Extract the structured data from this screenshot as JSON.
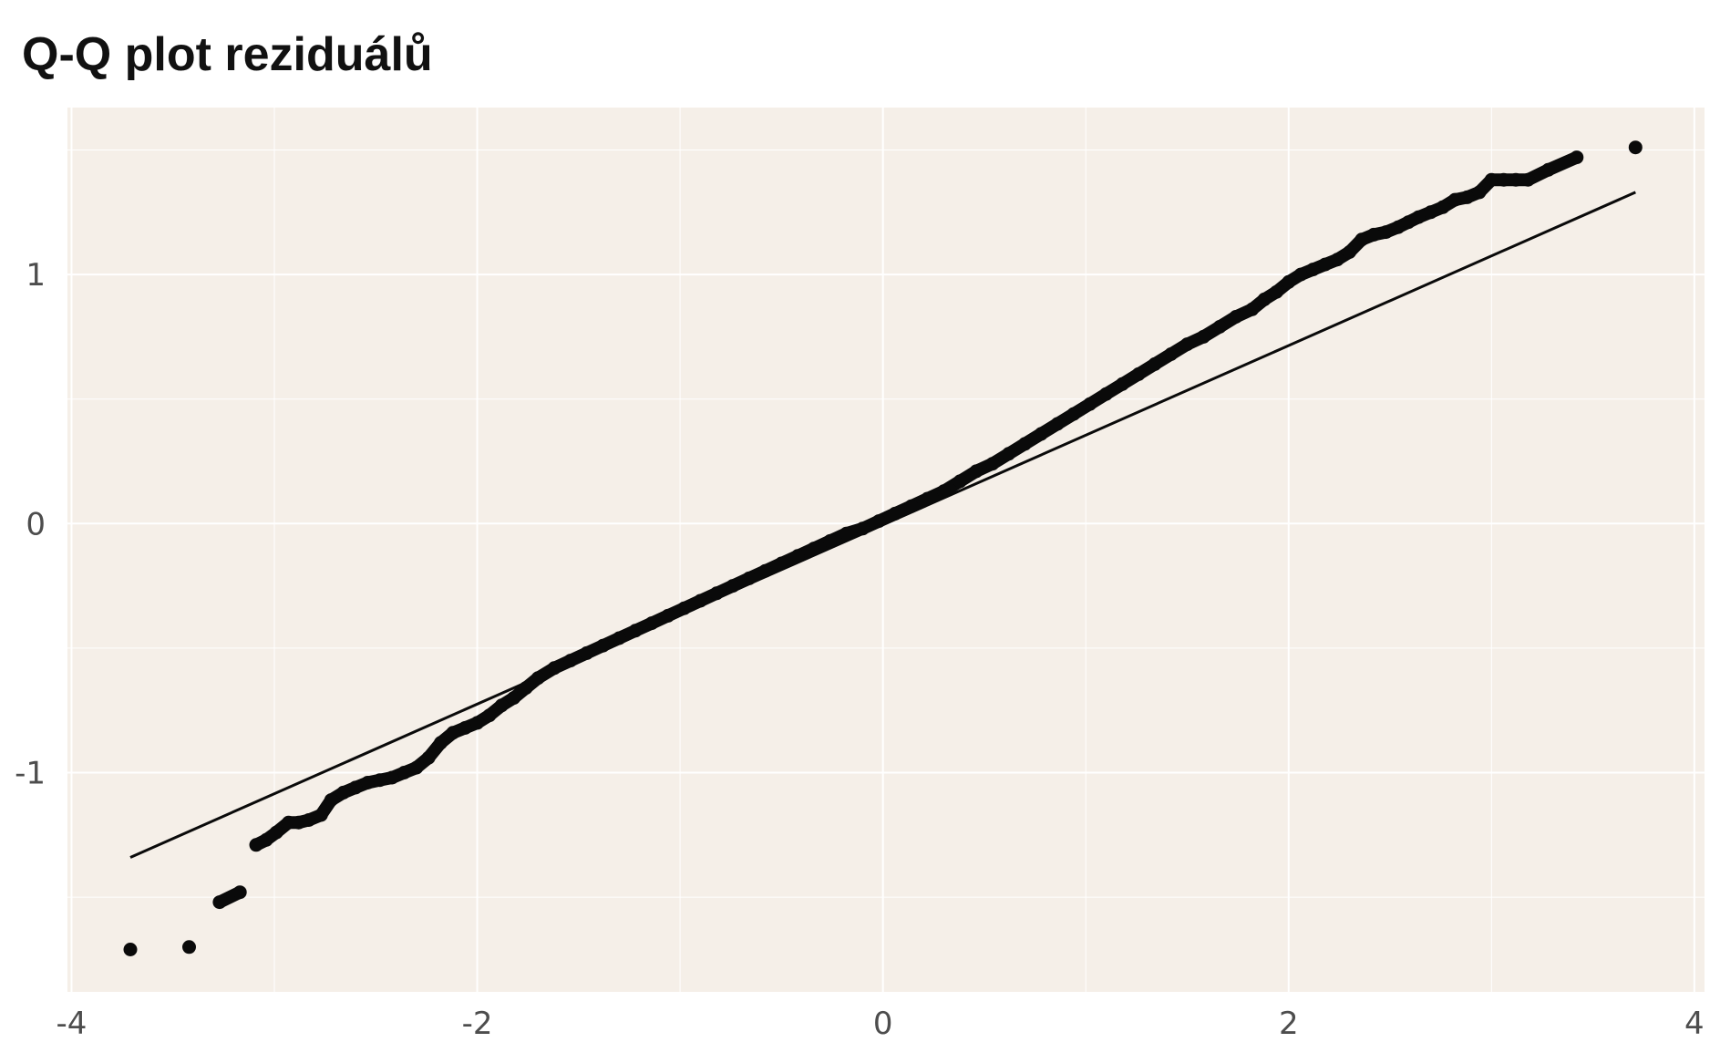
{
  "title": "Q-Q plot reziduálů",
  "colors": {
    "panel_background": "#f5efe8",
    "grid": "#ffffff",
    "points": "#0a0a0a",
    "reference_line": "#0a0a0a",
    "tick_text": "#4d4d4d"
  },
  "chart_data": {
    "type": "scatter",
    "title": "Q-Q plot reziduálů",
    "xlabel": "",
    "ylabel": "",
    "xlim": [
      -4.02,
      4.05
    ],
    "ylim": [
      -1.88,
      1.67
    ],
    "x_ticks": [
      -4,
      -2,
      0,
      2,
      4
    ],
    "x_tick_labels": [
      "-4",
      "-2",
      "0",
      "2",
      "4"
    ],
    "y_ticks": [
      -1,
      0,
      1
    ],
    "y_tick_labels": [
      "-1",
      "0",
      "1"
    ],
    "grid": true,
    "legend": "none",
    "reference_line": {
      "x": [
        -3.71,
        3.71
      ],
      "y": [
        -1.34,
        1.33
      ]
    },
    "points": {
      "x": [
        -3.71,
        -3.42,
        -3.27,
        -3.17,
        -3.09,
        -3.04,
        -2.99,
        -2.93,
        -2.88,
        -2.83,
        -2.77,
        -2.72,
        -2.66,
        -2.6,
        -2.54,
        -2.48,
        -2.42,
        -2.36,
        -2.3,
        -2.24,
        -2.18,
        -2.12,
        -2.06,
        -2.0,
        -1.94,
        -1.88,
        -1.82,
        -1.76,
        -1.7,
        -1.62,
        -1.54,
        -1.46,
        -1.38,
        -1.3,
        -1.22,
        -1.14,
        -1.06,
        -0.98,
        -0.9,
        -0.82,
        -0.74,
        -0.66,
        -0.58,
        -0.5,
        -0.42,
        -0.34,
        -0.26,
        -0.18,
        -0.1,
        -0.02,
        0.06,
        0.14,
        0.22,
        0.3,
        0.38,
        0.46,
        0.54,
        0.62,
        0.7,
        0.78,
        0.86,
        0.94,
        1.02,
        1.1,
        1.18,
        1.26,
        1.34,
        1.42,
        1.5,
        1.58,
        1.66,
        1.74,
        1.82,
        1.88,
        1.94,
        2.0,
        2.06,
        2.12,
        2.18,
        2.24,
        2.3,
        2.36,
        2.42,
        2.48,
        2.54,
        2.59,
        2.64,
        2.7,
        2.76,
        2.82,
        2.88,
        2.94,
        3.0,
        3.06,
        3.12,
        3.18,
        3.28,
        3.42,
        3.71
      ],
      "y": [
        -1.71,
        -1.7,
        -1.52,
        -1.48,
        -1.29,
        -1.27,
        -1.24,
        -1.2,
        -1.2,
        -1.19,
        -1.17,
        -1.11,
        -1.08,
        -1.06,
        -1.04,
        -1.03,
        -1.02,
        -1.0,
        -0.98,
        -0.94,
        -0.88,
        -0.84,
        -0.82,
        -0.8,
        -0.77,
        -0.73,
        -0.7,
        -0.66,
        -0.62,
        -0.58,
        -0.55,
        -0.52,
        -0.49,
        -0.46,
        -0.43,
        -0.4,
        -0.37,
        -0.34,
        -0.31,
        -0.28,
        -0.25,
        -0.22,
        -0.19,
        -0.16,
        -0.13,
        -0.1,
        -0.07,
        -0.04,
        -0.02,
        0.01,
        0.04,
        0.07,
        0.1,
        0.13,
        0.17,
        0.21,
        0.24,
        0.28,
        0.32,
        0.36,
        0.4,
        0.44,
        0.48,
        0.52,
        0.56,
        0.6,
        0.64,
        0.68,
        0.72,
        0.75,
        0.79,
        0.83,
        0.86,
        0.9,
        0.93,
        0.97,
        1.0,
        1.02,
        1.04,
        1.06,
        1.09,
        1.14,
        1.16,
        1.17,
        1.19,
        1.21,
        1.23,
        1.25,
        1.27,
        1.3,
        1.31,
        1.33,
        1.38,
        1.38,
        1.38,
        1.38,
        1.42,
        1.47,
        1.51
      ]
    }
  }
}
